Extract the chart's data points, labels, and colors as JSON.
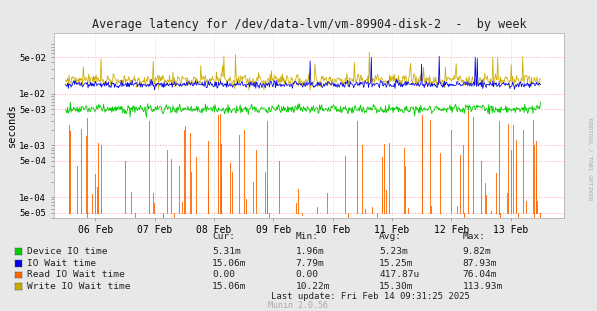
{
  "title": "Average latency for /dev/data-lvm/vm-89904-disk-2  -  by week",
  "ylabel": "seconds",
  "bg_color": "#e8e8e8",
  "plot_bg_color": "#ffffff",
  "x_tick_labels": [
    "06 Feb",
    "07 Feb",
    "08 Feb",
    "09 Feb",
    "10 Feb",
    "11 Feb",
    "12 Feb",
    "13 Feb"
  ],
  "x_tick_positions": [
    1,
    2,
    3,
    4,
    5,
    6,
    7,
    8
  ],
  "y_ticks": [
    5e-05,
    0.0001,
    0.0005,
    0.001,
    0.005,
    0.01,
    0.05
  ],
  "y_tick_labels": [
    "5e-05",
    "1e-04",
    "5e-04",
    "1e-03",
    "5e-03",
    "1e-02",
    "5e-02"
  ],
  "color_green": "#00cc00",
  "color_blue": "#0000ee",
  "color_orange": "#ff6600",
  "color_yellow": "#ccaa00",
  "legend_items": [
    {
      "label": "Device IO time",
      "color": "#00cc00"
    },
    {
      "label": "IO Wait time",
      "color": "#0000ee"
    },
    {
      "label": "Read IO Wait time",
      "color": "#ff6600"
    },
    {
      "label": "Write IO Wait time",
      "color": "#ccaa00"
    }
  ],
  "col_headers": [
    "Cur:",
    "Min:",
    "Avg:",
    "Max:"
  ],
  "col_values": [
    [
      "5.31m",
      "15.06m",
      "0.00",
      "15.06m"
    ],
    [
      "1.96m",
      "7.79m",
      "0.00",
      "10.22m"
    ],
    [
      "5.23m",
      "15.25m",
      "417.87u",
      "15.30m"
    ],
    [
      "9.82m",
      "87.93m",
      "76.04m",
      "113.93m"
    ]
  ],
  "last_update": "Last update: Fri Feb 14 09:31:25 2025",
  "munin_version": "Munin 2.0.56",
  "rrdtool_label": "RRDTOOL / TOBI OETIKER"
}
